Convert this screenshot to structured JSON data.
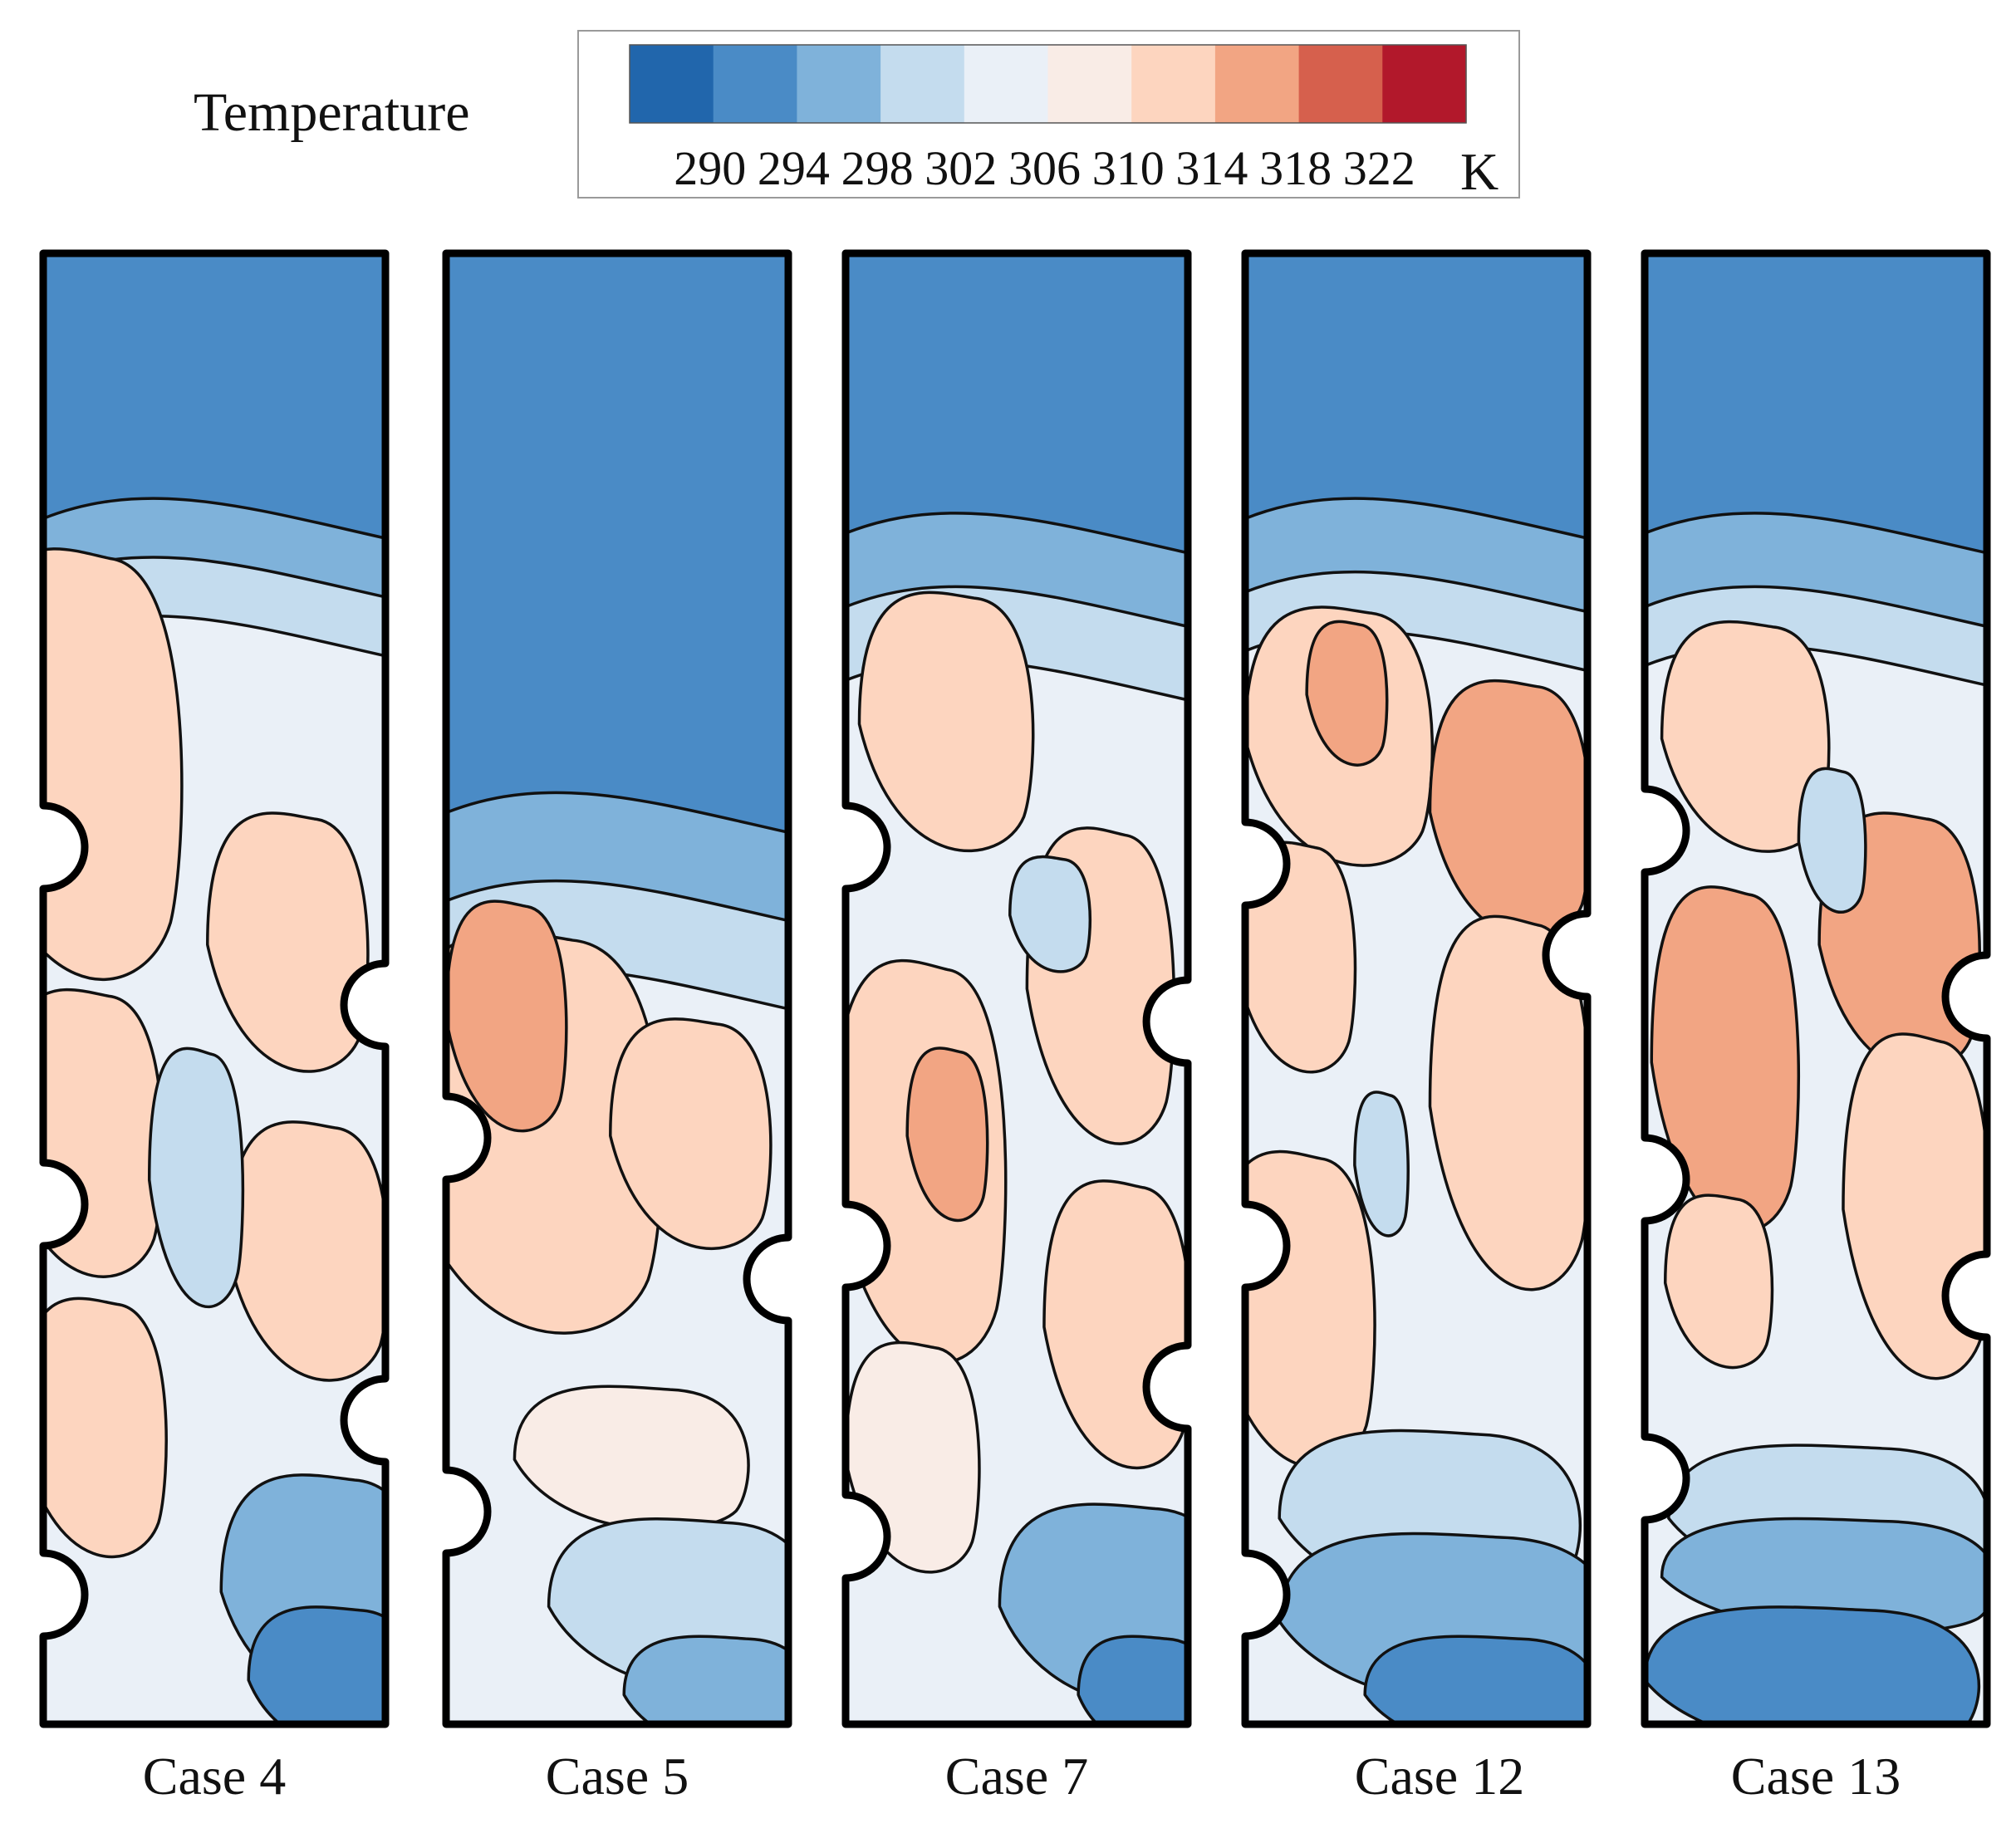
{
  "chart_data": {
    "type": "heatmap",
    "legend": {
      "title": "Temperature",
      "unit": "K",
      "levels": [
        290,
        294,
        298,
        302,
        306,
        310,
        314,
        318,
        322
      ],
      "colors": [
        "#2166ac",
        "#4a8bc6",
        "#7fb2da",
        "#c4dcee",
        "#eaf0f7",
        "#f9ece6",
        "#fdd5bf",
        "#f2a583",
        "#d6604d",
        "#b2182b"
      ]
    },
    "panels": [
      {
        "label": "Case 4"
      },
      {
        "label": "Case 5"
      },
      {
        "label": "Case 7"
      },
      {
        "label": "Case 12"
      },
      {
        "label": "Case 13"
      }
    ]
  }
}
